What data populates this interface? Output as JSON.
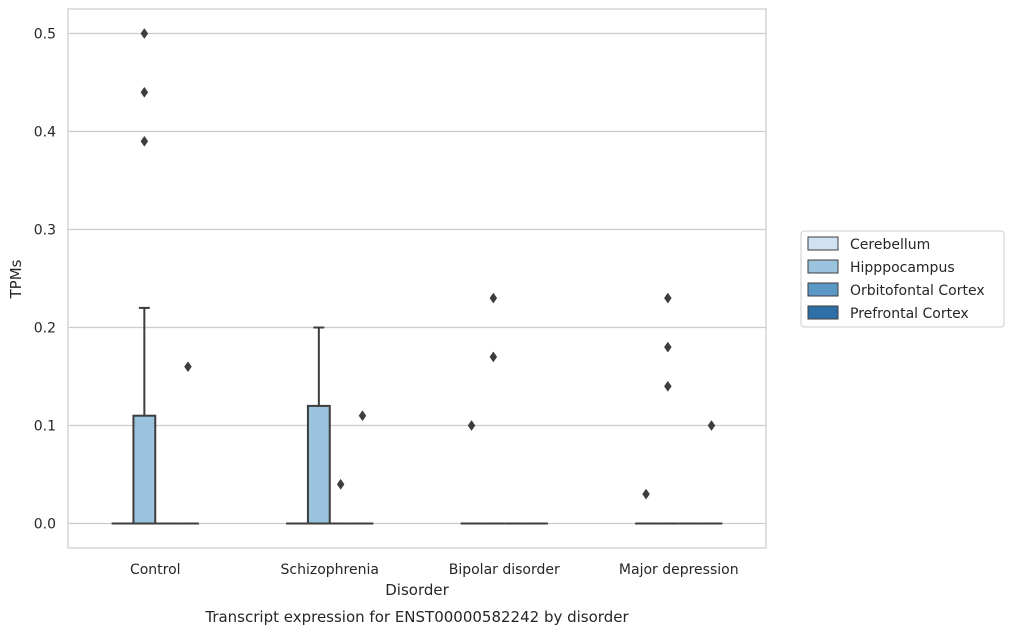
{
  "chart_data": {
    "type": "box",
    "caption": "Transcript expression for ENST00000582242 by disorder",
    "xlabel": "Disorder",
    "ylabel": "TPMs",
    "ylim": [
      -0.025,
      0.525
    ],
    "yticks": [
      0.0,
      0.1,
      0.2,
      0.3,
      0.4,
      0.5
    ],
    "ytick_labels": [
      "0.0",
      "0.1",
      "0.2",
      "0.3",
      "0.4",
      "0.5"
    ],
    "grid": "horizontal",
    "legend_position": "right",
    "categories": [
      "Control",
      "Schizophrenia",
      "Bipolar disorder",
      "Major depression"
    ],
    "series": [
      {
        "name": "Cerebellum",
        "color": "#d0e1f2",
        "boxes": [
          {
            "q1": 0,
            "median": 0,
            "q3": 0,
            "whisker_low": 0,
            "whisker_high": 0,
            "outliers": []
          },
          {
            "q1": 0,
            "median": 0,
            "q3": 0,
            "whisker_low": 0,
            "whisker_high": 0,
            "outliers": []
          },
          {
            "q1": 0,
            "median": 0,
            "q3": 0,
            "whisker_low": 0,
            "whisker_high": 0,
            "outliers": [
              0.1
            ]
          },
          {
            "q1": 0,
            "median": 0,
            "q3": 0,
            "whisker_low": 0,
            "whisker_high": 0,
            "outliers": [
              0.03
            ]
          }
        ]
      },
      {
        "name": "Hipppocampus",
        "color": "#9ac3dd",
        "boxes": [
          {
            "q1": 0,
            "median": 0,
            "q3": 0.11,
            "whisker_low": 0,
            "whisker_high": 0.22,
            "outliers": [
              0.39,
              0.44,
              0.5
            ]
          },
          {
            "q1": 0,
            "median": 0,
            "q3": 0.12,
            "whisker_low": 0,
            "whisker_high": 0.2,
            "outliers": []
          },
          {
            "q1": 0,
            "median": 0,
            "q3": 0,
            "whisker_low": 0,
            "whisker_high": 0,
            "outliers": [
              0.17,
              0.23
            ]
          },
          {
            "q1": 0,
            "median": 0,
            "q3": 0,
            "whisker_low": 0,
            "whisker_high": 0,
            "outliers": [
              0.14,
              0.18,
              0.23
            ]
          }
        ]
      },
      {
        "name": "Orbitofontal Cortex",
        "color": "#5a98c5",
        "boxes": [
          {
            "q1": 0,
            "median": 0,
            "q3": 0,
            "whisker_low": 0,
            "whisker_high": 0,
            "outliers": []
          },
          {
            "q1": 0,
            "median": 0,
            "q3": 0,
            "whisker_low": 0,
            "whisker_high": 0,
            "outliers": [
              0.04
            ]
          },
          {
            "q1": 0,
            "median": 0,
            "q3": 0,
            "whisker_low": 0,
            "whisker_high": 0,
            "outliers": []
          },
          {
            "q1": 0,
            "median": 0,
            "q3": 0,
            "whisker_low": 0,
            "whisker_high": 0,
            "outliers": []
          }
        ]
      },
      {
        "name": "Prefrontal Cortex",
        "color": "#2f6fa8",
        "boxes": [
          {
            "q1": 0,
            "median": 0,
            "q3": 0,
            "whisker_low": 0,
            "whisker_high": 0,
            "outliers": [
              0.16
            ]
          },
          {
            "q1": 0,
            "median": 0,
            "q3": 0,
            "whisker_low": 0,
            "whisker_high": 0,
            "outliers": [
              0.11
            ]
          },
          {
            "q1": 0,
            "median": 0,
            "q3": 0,
            "whisker_low": 0,
            "whisker_high": 0,
            "outliers": []
          },
          {
            "q1": 0,
            "median": 0,
            "q3": 0,
            "whisker_low": 0,
            "whisker_high": 0,
            "outliers": [
              0.1
            ]
          }
        ]
      }
    ]
  }
}
